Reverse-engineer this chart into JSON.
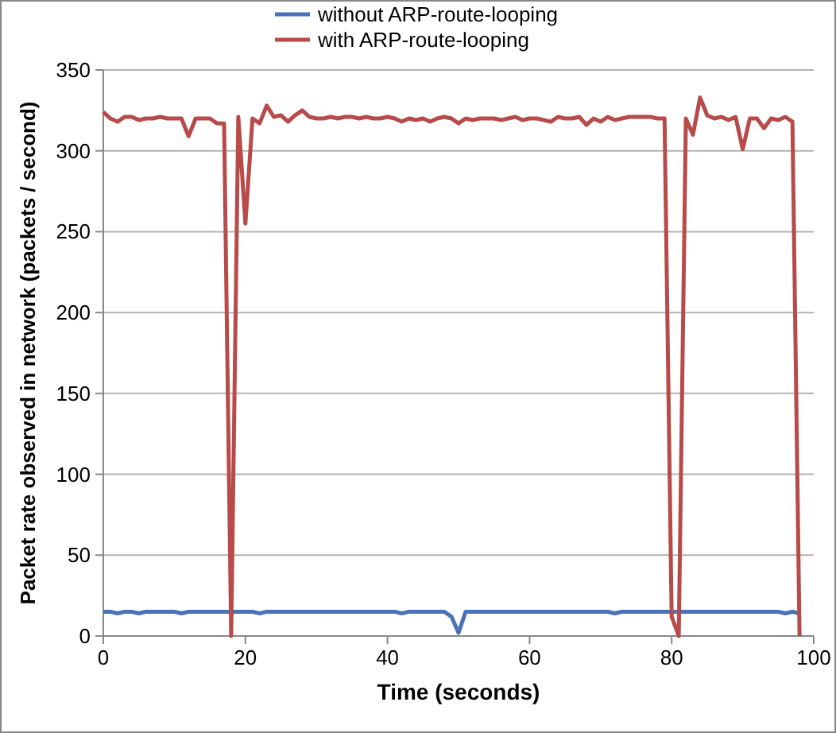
{
  "chart_data": {
    "type": "line",
    "xlabel": "Time (seconds)",
    "ylabel": "Packet rate observed in network (packets / second)",
    "x": [
      0,
      1,
      2,
      3,
      4,
      5,
      6,
      7,
      8,
      9,
      10,
      11,
      12,
      13,
      14,
      15,
      16,
      17,
      18,
      19,
      20,
      21,
      22,
      23,
      24,
      25,
      26,
      27,
      28,
      29,
      30,
      31,
      32,
      33,
      34,
      35,
      36,
      37,
      38,
      39,
      40,
      41,
      42,
      43,
      44,
      45,
      46,
      47,
      48,
      49,
      50,
      51,
      52,
      53,
      54,
      55,
      56,
      57,
      58,
      59,
      60,
      61,
      62,
      63,
      64,
      65,
      66,
      67,
      68,
      69,
      70,
      71,
      72,
      73,
      74,
      75,
      76,
      77,
      78,
      79,
      80,
      81,
      82,
      83,
      84,
      85,
      86,
      87,
      88,
      89,
      90,
      91,
      92,
      93,
      94,
      95,
      96,
      97,
      98
    ],
    "series": [
      {
        "name": "without ARP-route-looping",
        "color": "#4a72b8",
        "values": [
          15,
          15,
          14,
          15,
          15,
          14,
          15,
          15,
          15,
          15,
          15,
          14,
          15,
          15,
          15,
          15,
          15,
          15,
          15,
          15,
          15,
          15,
          14,
          15,
          15,
          15,
          15,
          15,
          15,
          15,
          15,
          15,
          15,
          15,
          15,
          15,
          15,
          15,
          15,
          15,
          15,
          15,
          14,
          15,
          15,
          15,
          15,
          15,
          15,
          12,
          2,
          15,
          15,
          15,
          15,
          15,
          15,
          15,
          15,
          15,
          15,
          15,
          15,
          15,
          15,
          15,
          15,
          15,
          15,
          15,
          15,
          15,
          14,
          15,
          15,
          15,
          15,
          15,
          15,
          15,
          15,
          15,
          15,
          15,
          15,
          15,
          15,
          15,
          15,
          15,
          15,
          15,
          15,
          15,
          15,
          15,
          14,
          15,
          14
        ]
      },
      {
        "name": "with ARP-route-looping",
        "color": "#b84a4a",
        "values": [
          324,
          320,
          318,
          321,
          321,
          319,
          320,
          320,
          321,
          320,
          320,
          320,
          309,
          320,
          320,
          320,
          317,
          317,
          0,
          321,
          255,
          320,
          317,
          328,
          321,
          322,
          318,
          322,
          325,
          321,
          320,
          320,
          321,
          320,
          321,
          321,
          320,
          321,
          320,
          320,
          321,
          320,
          318,
          320,
          319,
          320,
          318,
          320,
          321,
          320,
          317,
          320,
          319,
          320,
          320,
          320,
          319,
          320,
          321,
          319,
          320,
          320,
          319,
          318,
          321,
          320,
          320,
          321,
          316,
          320,
          318,
          321,
          319,
          320,
          321,
          321,
          321,
          321,
          320,
          320,
          12,
          0,
          320,
          310,
          333,
          322,
          320,
          321,
          319,
          321,
          301,
          320,
          320,
          314,
          320,
          319,
          321,
          318,
          0
        ]
      }
    ],
    "xlim": [
      0,
      100
    ],
    "xticks": [
      0,
      20,
      40,
      60,
      80,
      100
    ],
    "ylim": [
      0,
      350
    ],
    "yticks": [
      0,
      50,
      100,
      150,
      200,
      250,
      300,
      350
    ],
    "grid": "y",
    "legend": "top",
    "line_style": "solid"
  }
}
